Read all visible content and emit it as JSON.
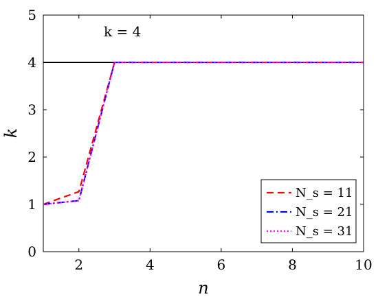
{
  "chart_data": {
    "type": "line",
    "xlabel": "n",
    "ylabel": "k",
    "xlim": [
      1,
      10
    ],
    "ylim": [
      0,
      5
    ],
    "xticks": [
      2,
      4,
      6,
      8,
      10
    ],
    "yticks": [
      0,
      1,
      2,
      3,
      4,
      5
    ],
    "grid": false,
    "legend_position": "bottom-right",
    "reference_line": {
      "y": 4,
      "color": "#000000"
    },
    "annotation": {
      "text": "k = 4",
      "x": 2.7,
      "y": 4.55
    },
    "series": [
      {
        "name": "N_s = 11",
        "color": "#ff0000",
        "dash": "dashed",
        "x": [
          1,
          2,
          3,
          4,
          5,
          6,
          7,
          8,
          9,
          10
        ],
        "y": [
          1.0,
          1.27,
          4.0,
          4.0,
          4.0,
          4.0,
          4.0,
          4.0,
          4.0,
          4.0
        ]
      },
      {
        "name": "N_s = 21",
        "color": "#0000ff",
        "dash": "dashdot",
        "x": [
          1,
          2,
          3,
          4,
          5,
          6,
          7,
          8,
          9,
          10
        ],
        "y": [
          1.0,
          1.08,
          4.0,
          4.0,
          4.0,
          4.0,
          4.0,
          4.0,
          4.0,
          4.0
        ]
      },
      {
        "name": "N_s = 31",
        "color": "#ff00ff",
        "dash": "dotted",
        "x": [
          1,
          2,
          3,
          4,
          5,
          6,
          7,
          8,
          9,
          10
        ],
        "y": [
          1.0,
          1.08,
          4.0,
          4.0,
          4.0,
          4.0,
          4.0,
          4.0,
          4.0,
          4.0
        ]
      }
    ]
  }
}
